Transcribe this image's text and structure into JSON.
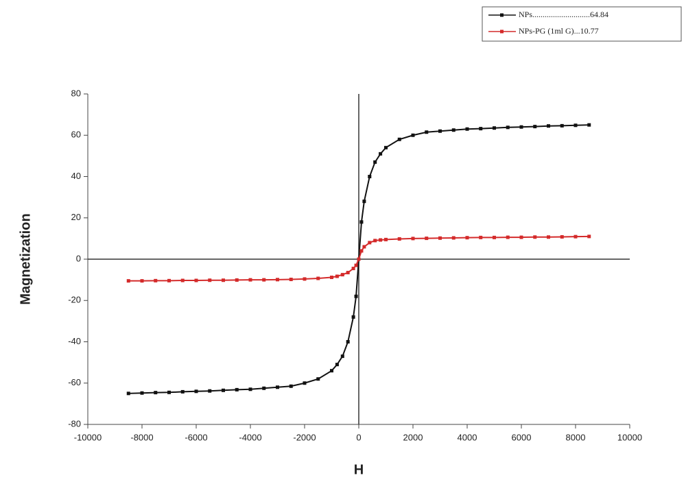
{
  "chart_data": {
    "type": "line",
    "x_label": "H",
    "y_label": "Magnetization",
    "x": [
      -8500,
      -8000,
      -7500,
      -7000,
      -6500,
      -6000,
      -5500,
      -5000,
      -4500,
      -4000,
      -3500,
      -3000,
      -2500,
      -2000,
      -1500,
      -1000,
      -800,
      -600,
      -400,
      -200,
      -100,
      0,
      100,
      200,
      400,
      600,
      800,
      1000,
      1500,
      2000,
      2500,
      3000,
      3500,
      4000,
      4500,
      5000,
      5500,
      6000,
      6500,
      7000,
      7500,
      8000,
      8500
    ],
    "series": [
      {
        "name": "NPs............................64.84",
        "color": "#111111",
        "values": [
          -65,
          -64.8,
          -64.6,
          -64.5,
          -64.2,
          -64,
          -63.8,
          -63.5,
          -63.2,
          -63,
          -62.5,
          -62,
          -61.5,
          -60,
          -58,
          -54,
          -51,
          -47,
          -40,
          -28,
          -18,
          0,
          18,
          28,
          40,
          47,
          51,
          54,
          58,
          60,
          61.5,
          62,
          62.5,
          63,
          63.2,
          63.5,
          63.8,
          64,
          64.2,
          64.5,
          64.6,
          64.8,
          65
        ]
      },
      {
        "name": "NPs-PG (1ml G)...10.77",
        "color": "#d42a2a",
        "values": [
          -10.5,
          -10.5,
          -10.4,
          -10.4,
          -10.3,
          -10.3,
          -10.2,
          -10.2,
          -10.1,
          -10,
          -10,
          -9.9,
          -9.8,
          -9.6,
          -9.3,
          -8.8,
          -8.3,
          -7.5,
          -6.5,
          -4.5,
          -3,
          0,
          4,
          6,
          8,
          9,
          9.3,
          9.5,
          9.8,
          10,
          10.1,
          10.2,
          10.3,
          10.4,
          10.5,
          10.5,
          10.6,
          10.6,
          10.7,
          10.7,
          10.8,
          10.9,
          11
        ]
      }
    ],
    "xlim": [
      -10000,
      10000
    ],
    "xticks": [
      -10000,
      -8000,
      -6000,
      -4000,
      -2000,
      0,
      2000,
      4000,
      6000,
      8000,
      10000
    ],
    "ylim": [
      -80,
      80
    ],
    "yticks": [
      -80,
      -60,
      -40,
      -20,
      0,
      20,
      40,
      60,
      80
    ]
  }
}
